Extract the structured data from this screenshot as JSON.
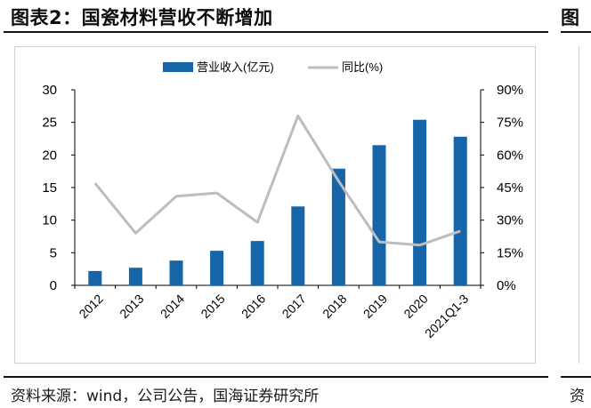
{
  "title": "图表2：国瓷材料营收不断增加",
  "next_title_fragment": "图",
  "source": "资料来源：wind，公司公告，国海证券研究所",
  "next_source_fragment": "资",
  "chart_data": {
    "type": "bar",
    "categories": [
      "2012",
      "2013",
      "2014",
      "2015",
      "2016",
      "2017",
      "2018",
      "2019",
      "2020",
      "2021Q1-3"
    ],
    "series": [
      {
        "name": "营业收入(亿元)",
        "type": "bar",
        "axis": "left",
        "color": "#1565a8",
        "values": [
          2.2,
          2.7,
          3.8,
          5.3,
          6.8,
          12.1,
          17.9,
          21.5,
          25.4,
          22.8
        ]
      },
      {
        "name": "同比(%)",
        "type": "line",
        "axis": "right",
        "color": "#bdbdbd",
        "values": [
          47,
          24,
          41,
          42.5,
          29,
          78,
          48,
          20,
          18.5,
          25
        ]
      }
    ],
    "y_left": {
      "min": 0,
      "max": 30,
      "ticks": [
        0,
        5,
        10,
        15,
        20,
        25,
        30
      ]
    },
    "y_right": {
      "min": 0,
      "max": 90,
      "ticks": [
        "0%",
        "15%",
        "30%",
        "45%",
        "60%",
        "75%",
        "90%"
      ]
    },
    "legend_position": "top-center",
    "grid": false
  }
}
